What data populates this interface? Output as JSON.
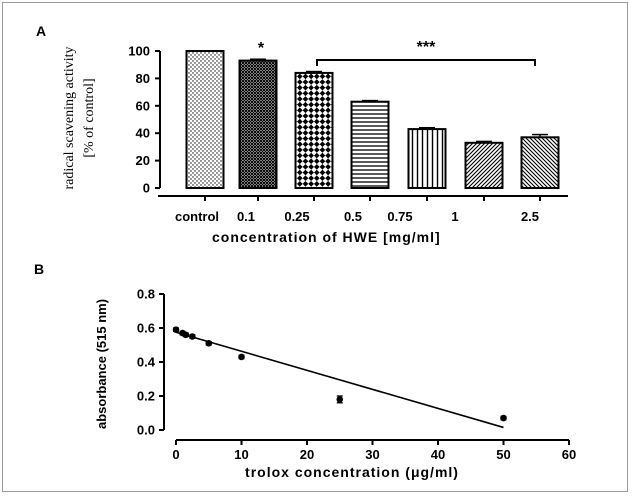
{
  "chart_data": [
    {
      "type": "bar",
      "panel": "A",
      "categories": [
        "control",
        "0.1",
        "0.25",
        "0.5",
        "0.75",
        "1",
        "2.5"
      ],
      "values": [
        100,
        93,
        84,
        63,
        43,
        33,
        37
      ],
      "errors": [
        0,
        1,
        1,
        0.8,
        1,
        1,
        2
      ],
      "patterns": [
        "dots",
        "dense-crosshatch",
        "checker",
        "horizontal",
        "vertical",
        "diagonal-left",
        "diagonal-right"
      ],
      "title": "",
      "xlabel": "concentration of HWE [mg/ml]",
      "ylabel": [
        "radical scavening activity",
        "[% of control]"
      ],
      "ylim": [
        0,
        100
      ],
      "yticks": [
        0,
        20,
        40,
        60,
        80,
        100
      ],
      "annotations": [
        {
          "text": "*",
          "category": "0.1"
        },
        {
          "text": "***",
          "span": [
            "0.25",
            "2.5"
          ]
        }
      ],
      "grid": false
    },
    {
      "type": "scatter",
      "panel": "B",
      "points": [
        {
          "x": 0,
          "y": 0.59,
          "err": 0.01
        },
        {
          "x": 1,
          "y": 0.57,
          "err": 0.01
        },
        {
          "x": 1.5,
          "y": 0.56,
          "err": 0.01
        },
        {
          "x": 2.5,
          "y": 0.55,
          "err": 0.01
        },
        {
          "x": 5,
          "y": 0.51,
          "err": 0.01
        },
        {
          "x": 10,
          "y": 0.43,
          "err": 0.01
        },
        {
          "x": 25,
          "y": 0.18,
          "err": 0.02
        },
        {
          "x": 50,
          "y": 0.07,
          "err": 0.01
        }
      ],
      "fit_line": {
        "x": [
          0,
          50
        ],
        "y": [
          0.575,
          0.015
        ]
      },
      "xlabel": "trolox concentration (μg/ml)",
      "ylabel": "absorbance (515 nm)",
      "xlim": [
        0,
        60
      ],
      "ylim": [
        0,
        0.8
      ],
      "xticks": [
        0,
        10,
        20,
        30,
        40,
        50,
        60
      ],
      "yticks": [
        "0.0",
        "0.2",
        "0.4",
        "0.6",
        "0.8"
      ],
      "grid": false
    }
  ]
}
